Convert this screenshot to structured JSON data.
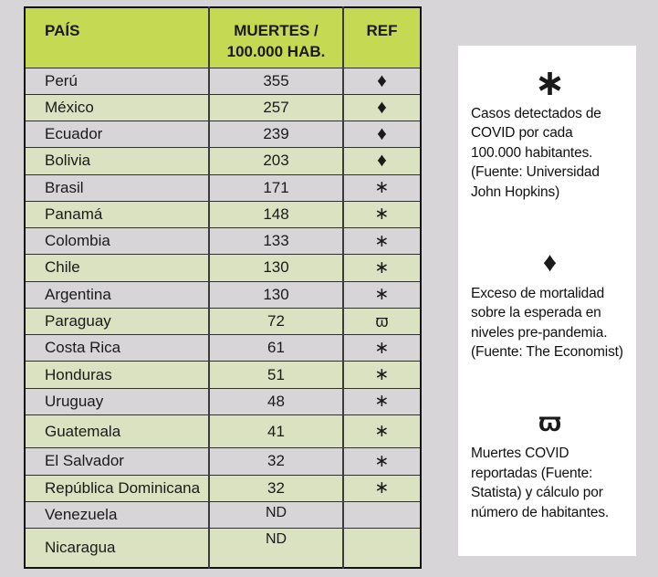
{
  "colors": {
    "background": "#d8d5d8",
    "header_green": "#c5d952",
    "row_green": "#dbe2c2",
    "row_gray": "#d8d5d8",
    "panel": "#ffffff",
    "line": "#2e2e2e",
    "text": "#1a1a1a"
  },
  "symbols": {
    "asterisk": "∗",
    "diamond": "♦",
    "varpi": "ϖ"
  },
  "chart_data": {
    "type": "table",
    "columns": [
      "PAÍS",
      "MUERTES /\n100.000 HAB.",
      "REF"
    ],
    "rows": [
      {
        "country": "Perú",
        "value": "355",
        "ref": "diamond"
      },
      {
        "country": "México",
        "value": "257",
        "ref": "diamond"
      },
      {
        "country": "Ecuador",
        "value": "239",
        "ref": "diamond"
      },
      {
        "country": "Bolivia",
        "value": "203",
        "ref": "diamond"
      },
      {
        "country": "Brasil",
        "value": "171",
        "ref": "asterisk"
      },
      {
        "country": "Panamá",
        "value": "148",
        "ref": "asterisk"
      },
      {
        "country": "Colombia",
        "value": "133",
        "ref": "asterisk"
      },
      {
        "country": "Chile",
        "value": "130",
        "ref": "asterisk"
      },
      {
        "country": "Argentina",
        "value": "130",
        "ref": "asterisk"
      },
      {
        "country": "Paraguay",
        "value": "72",
        "ref": "varpi"
      },
      {
        "country": "Costa Rica",
        "value": "61",
        "ref": "asterisk"
      },
      {
        "country": "Honduras",
        "value": "51",
        "ref": "asterisk"
      },
      {
        "country": "Uruguay",
        "value": "48",
        "ref": "asterisk"
      },
      {
        "country": "Guatemala",
        "value": "41",
        "ref": "asterisk"
      },
      {
        "country": "El Salvador",
        "value": "32",
        "ref": "asterisk"
      },
      {
        "country": "República Dominicana",
        "value": "32",
        "ref": "asterisk"
      },
      {
        "country": "Venezuela",
        "value": "ND",
        "ref": ""
      },
      {
        "country": "Nicaragua",
        "value": "ND",
        "ref": ""
      }
    ],
    "legend": [
      {
        "symbol": "asterisk",
        "text": "Casos detectados de\nCOVID por cada\n100.000 habitantes.\n(Fuente: Universidad\nJohn Hopkins)"
      },
      {
        "symbol": "diamond",
        "text": "Exceso de mortalidad\nsobre la esperada en\nniveles pre-pandemia.\n(Fuente: The Economist)"
      },
      {
        "symbol": "varpi",
        "text": "Muertes COVID\nreportadas (Fuente:\nStatista) y cálculo por\nnúmero de habitantes."
      }
    ]
  }
}
